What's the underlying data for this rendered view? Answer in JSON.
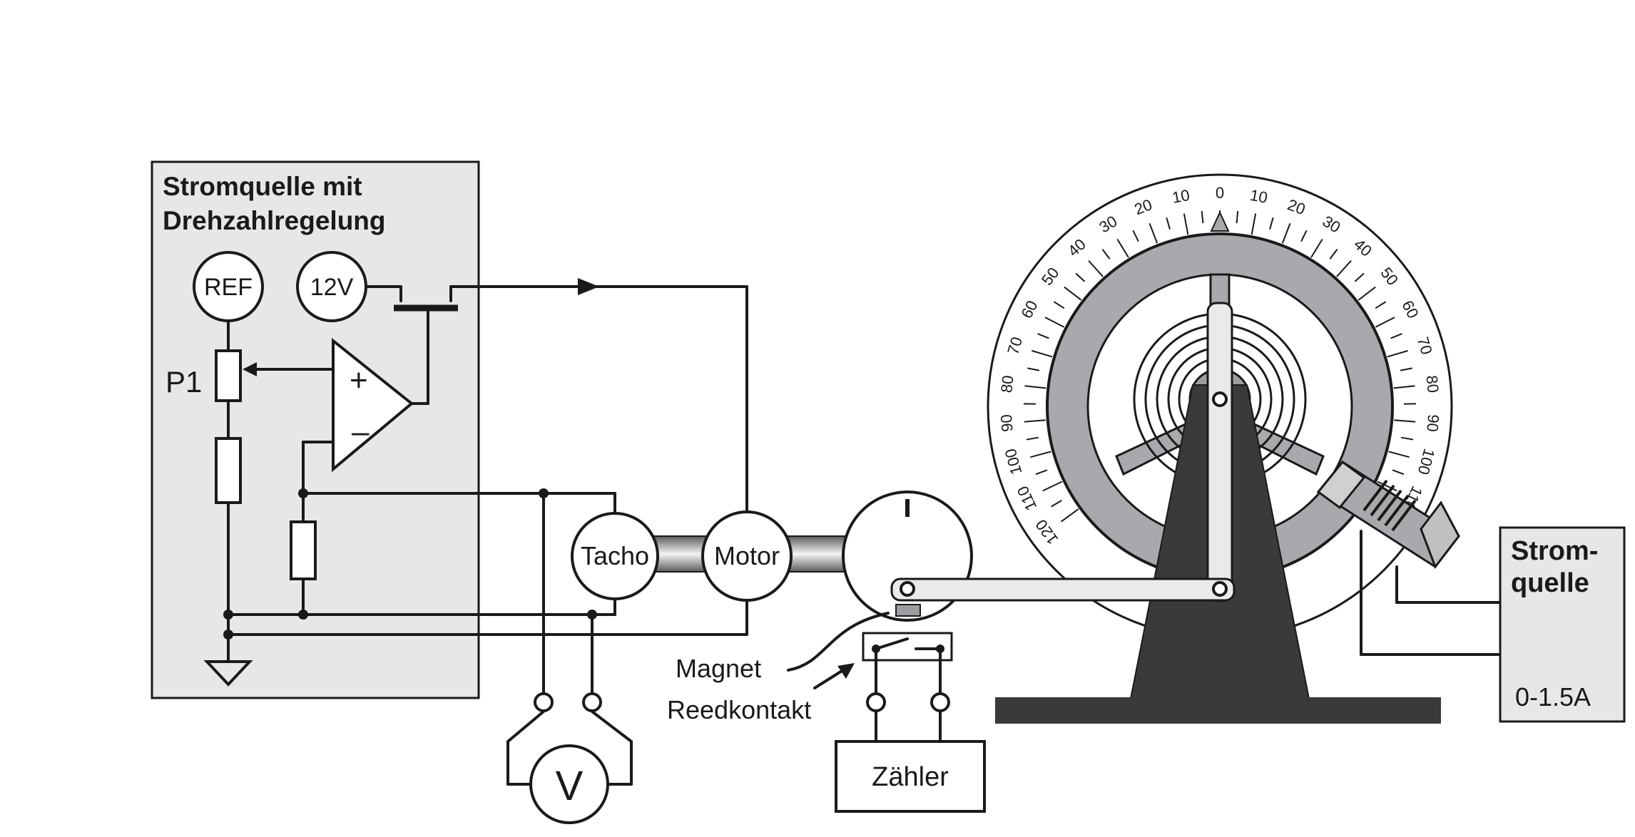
{
  "controller": {
    "title_line1": "Stromquelle mit",
    "title_line2": "Drehzahlregelung",
    "ref_label": "REF",
    "supply_label": "12V",
    "pot_label": "P1",
    "plus_sign": "+",
    "minus_sign": "–"
  },
  "components": {
    "tacho": "Tacho",
    "motor": "Motor",
    "voltmeter": "V",
    "counter": "Zähler",
    "magnet": "Magnet",
    "reed": "Reedkontakt"
  },
  "power_supply": {
    "title_line1": "Strom-",
    "title_line2": "quelle",
    "range": "0-1.5A"
  },
  "dial": {
    "left_labels": [
      "0",
      "10",
      "20",
      "30",
      "40",
      "50",
      "60",
      "70",
      "80",
      "90",
      "100",
      "110",
      "120"
    ],
    "right_labels": [
      "0",
      "10",
      "20",
      "30",
      "40",
      "50",
      "60",
      "70",
      "80",
      "90",
      "100",
      "110"
    ]
  },
  "colors": {
    "panel_fill": "#e6e7e9",
    "line": "#1a1a1a",
    "stand": "#3a3a3a",
    "ring": "#a8a9ac",
    "hub": "#9d9ea1",
    "arm": "#e9eaec"
  }
}
